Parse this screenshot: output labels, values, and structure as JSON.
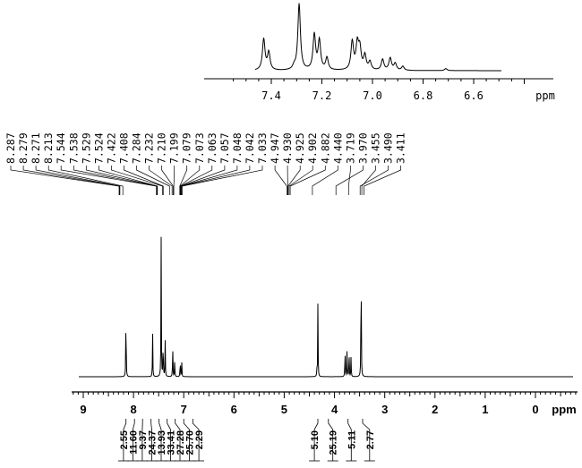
{
  "inset_spectrum": {
    "type": "line",
    "x_unit": "ppm",
    "x_ticks": [
      "7.4",
      "7.2",
      "7.0",
      "6.8",
      "6.6"
    ],
    "xlim": [
      7.55,
      6.37
    ],
    "peaks": [
      {
        "ppm": 7.43,
        "h": 0.46
      },
      {
        "ppm": 7.41,
        "h": 0.26
      },
      {
        "ppm": 7.29,
        "h": 0.98
      },
      {
        "ppm": 7.31,
        "h": 0.05
      },
      {
        "ppm": 7.23,
        "h": 0.52
      },
      {
        "ppm": 7.21,
        "h": 0.43
      },
      {
        "ppm": 7.18,
        "h": 0.18
      },
      {
        "ppm": 7.08,
        "h": 0.42
      },
      {
        "ppm": 7.06,
        "h": 0.37
      },
      {
        "ppm": 7.05,
        "h": 0.3
      },
      {
        "ppm": 7.03,
        "h": 0.21
      },
      {
        "ppm": 7.01,
        "h": 0.12
      },
      {
        "ppm": 6.96,
        "h": 0.16
      },
      {
        "ppm": 6.93,
        "h": 0.18
      },
      {
        "ppm": 6.91,
        "h": 0.1
      },
      {
        "ppm": 6.88,
        "h": 0.06
      },
      {
        "ppm": 6.71,
        "h": 0.03
      }
    ]
  },
  "peak_list": [
    "8.287",
    "8.279",
    "8.271",
    "8.213",
    "7.544",
    "7.538",
    "7.529",
    "7.524",
    "7.422",
    "7.408",
    "7.284",
    "7.232",
    "7.210",
    "7.199",
    "7.079",
    "7.073",
    "7.063",
    "7.057",
    "7.048",
    "7.042",
    "7.033",
    "4.947",
    "4.930",
    "4.925",
    "4.902",
    "4.882",
    "4.440",
    "3.719",
    "3.970",
    "3.455",
    "3.490",
    "3.411"
  ],
  "chart_data": {
    "type": "line",
    "x_unit": "ppm",
    "x_ticks": [
      "9",
      "8",
      "7",
      "6",
      "5",
      "4",
      "3",
      "2",
      "1",
      "0"
    ],
    "xlim": [
      9.3,
      -0.8
    ],
    "peaks": [
      {
        "ppm": 8.15,
        "h": 0.54
      },
      {
        "ppm": 7.62,
        "h": 0.33
      },
      {
        "ppm": 7.45,
        "h": 1.0
      },
      {
        "ppm": 7.41,
        "h": 0.3
      },
      {
        "ppm": 7.37,
        "h": 0.26
      },
      {
        "ppm": 7.22,
        "h": 0.23
      },
      {
        "ppm": 7.18,
        "h": 0.13
      },
      {
        "ppm": 7.07,
        "h": 0.14
      },
      {
        "ppm": 7.04,
        "h": 0.1
      },
      {
        "ppm": 4.33,
        "h": 0.53
      },
      {
        "ppm": 4.35,
        "h": 0.05
      },
      {
        "ppm": 3.79,
        "h": 0.22
      },
      {
        "ppm": 3.75,
        "h": 0.2
      },
      {
        "ppm": 3.71,
        "h": 0.21
      },
      {
        "ppm": 3.67,
        "h": 0.15
      },
      {
        "ppm": 3.47,
        "h": 0.98
      }
    ],
    "integrals": [
      {
        "label": "2.55",
        "ppm": 8.15
      },
      {
        "label": "11.60",
        "ppm": 7.98
      },
      {
        "label": "9.37",
        "ppm": 7.82
      },
      {
        "label": "24.37",
        "ppm": 7.65
      },
      {
        "label": "13.93",
        "ppm": 7.49
      },
      {
        "label": "33.41",
        "ppm": 7.33
      },
      {
        "label": "27.28",
        "ppm": 7.17
      },
      {
        "label": "25.70",
        "ppm": 7.0
      },
      {
        "label": "2.29",
        "ppm": 6.82
      },
      {
        "label": "5.10",
        "ppm": 4.33
      },
      {
        "label": "25.19",
        "ppm": 4.12
      },
      {
        "label": "5.11",
        "ppm": 3.73
      },
      {
        "label": "2.77",
        "ppm": 3.44
      }
    ]
  }
}
